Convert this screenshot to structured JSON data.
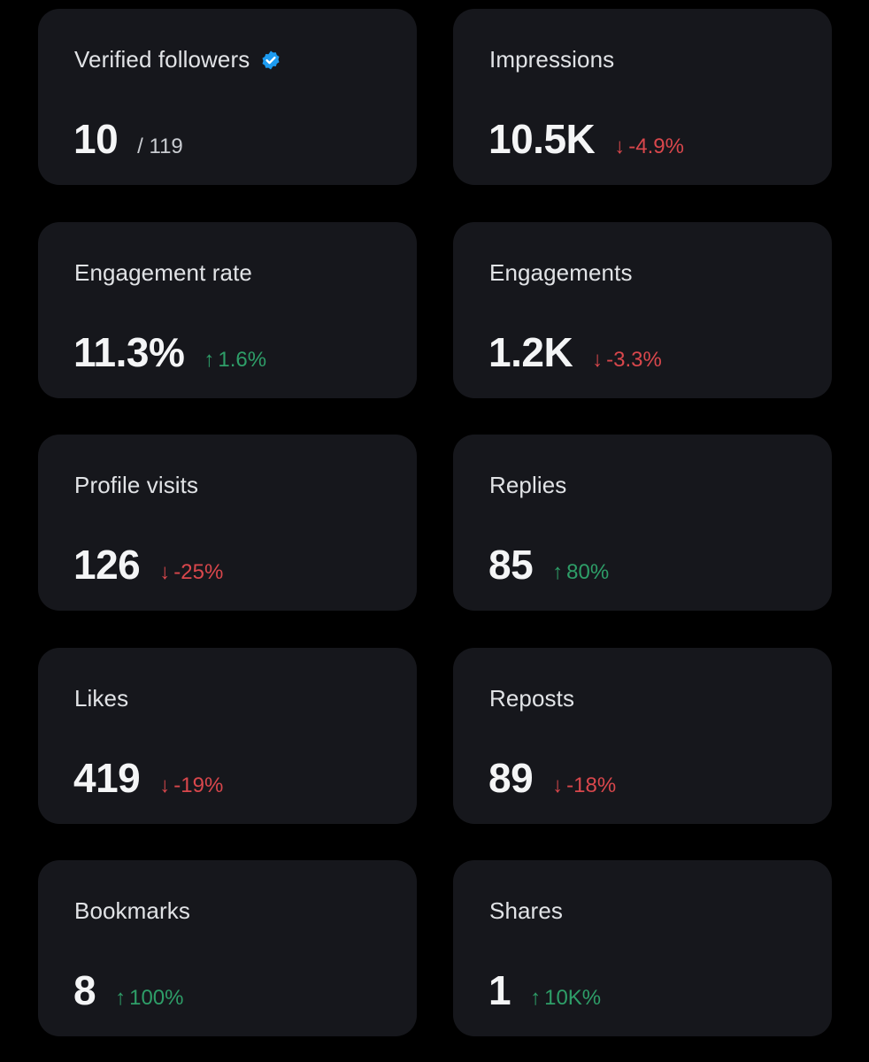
{
  "colors": {
    "background": "#000000",
    "card": "#16171c",
    "positive": "#2e9e68",
    "negative": "#d9474c",
    "verified": "#1d9bf0"
  },
  "metrics": [
    {
      "label": "Verified followers",
      "value": "10",
      "sub": "/ 119",
      "icon": "verified-badge-icon"
    },
    {
      "label": "Impressions",
      "value": "10.5K",
      "arrow": "↓",
      "delta": "-4.9%",
      "trend": "down"
    },
    {
      "label": "Engagement rate",
      "value": "11.3%",
      "arrow": "↑",
      "delta": "1.6%",
      "trend": "up"
    },
    {
      "label": "Engagements",
      "value": "1.2K",
      "arrow": "↓",
      "delta": "-3.3%",
      "trend": "down"
    },
    {
      "label": "Profile visits",
      "value": "126",
      "arrow": "↓",
      "delta": "-25%",
      "trend": "down"
    },
    {
      "label": "Replies",
      "value": "85",
      "arrow": "↑",
      "delta": "80%",
      "trend": "up"
    },
    {
      "label": "Likes",
      "value": "419",
      "arrow": "↓",
      "delta": "-19%",
      "trend": "down"
    },
    {
      "label": "Reposts",
      "value": "89",
      "arrow": "↓",
      "delta": "-18%",
      "trend": "down"
    },
    {
      "label": "Bookmarks",
      "value": "8",
      "arrow": "↑",
      "delta": "100%",
      "trend": "up"
    },
    {
      "label": "Shares",
      "value": "1",
      "arrow": "↑",
      "delta": "10K%",
      "trend": "up"
    }
  ]
}
